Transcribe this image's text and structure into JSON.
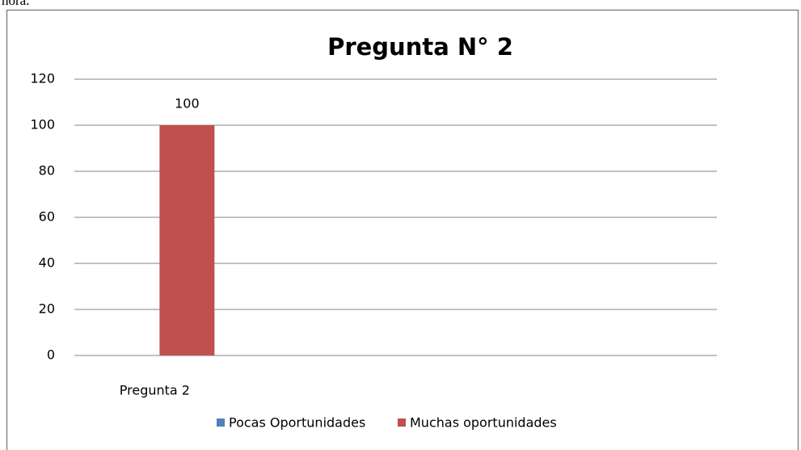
{
  "fragment": "hora.",
  "chart_data": {
    "type": "bar",
    "title": "Pregunta N° 2",
    "categories": [
      "Pregunta 2",
      null,
      null,
      null
    ],
    "series": [
      {
        "name": "Pocas Oportunidades",
        "color": "#4f81bd",
        "values": [
          0,
          null,
          null,
          null
        ]
      },
      {
        "name": "Muchas oportunidades",
        "color": "#c0504d",
        "values": [
          100,
          null,
          null,
          null
        ]
      }
    ],
    "ylim": [
      0,
      120
    ],
    "yticks": [
      0,
      20,
      40,
      60,
      80,
      100,
      120
    ],
    "grid": true,
    "legend": "bottom"
  }
}
